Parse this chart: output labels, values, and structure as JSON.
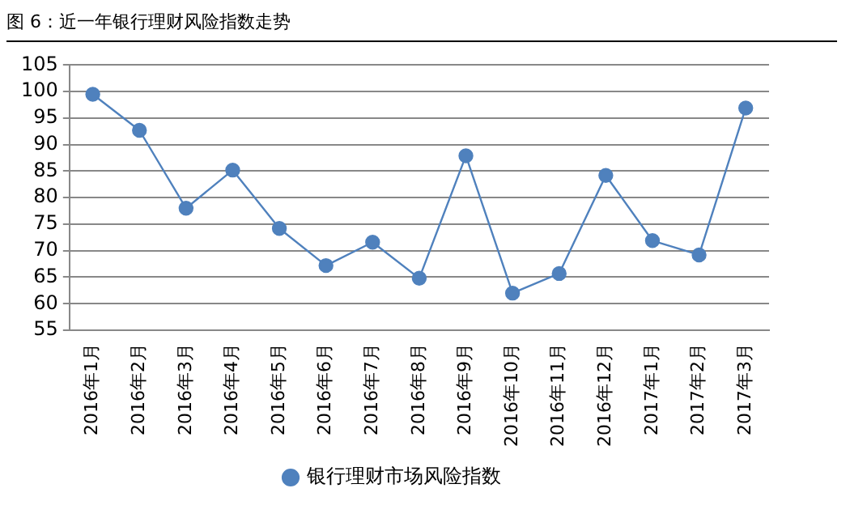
{
  "chart_data": {
    "type": "line",
    "title": "图 6：近一年银行理财风险指数走势",
    "categories": [
      "2016年1月",
      "2016年2月",
      "2016年3月",
      "2016年4月",
      "2016年5月",
      "2016年6月",
      "2016年7月",
      "2016年8月",
      "2016年9月",
      "2016年10月",
      "2016年11月",
      "2016年12月",
      "2017年1月",
      "2017年2月",
      "2017年3月"
    ],
    "series": [
      {
        "name": "银行理财市场风险指数",
        "color": "#4f81bd",
        "values": [
          99.5,
          92.7,
          78,
          85.2,
          74.2,
          67.2,
          71.6,
          64.8,
          87.9,
          62,
          65.7,
          84.2,
          71.9,
          69.2,
          96.9
        ]
      }
    ],
    "ylim": [
      55,
      105
    ],
    "yticks": [
      55,
      60,
      65,
      70,
      75,
      80,
      85,
      90,
      95,
      100,
      105
    ],
    "grid": "y",
    "legend": "bottom",
    "marker": "circle",
    "line_style": "solid"
  }
}
